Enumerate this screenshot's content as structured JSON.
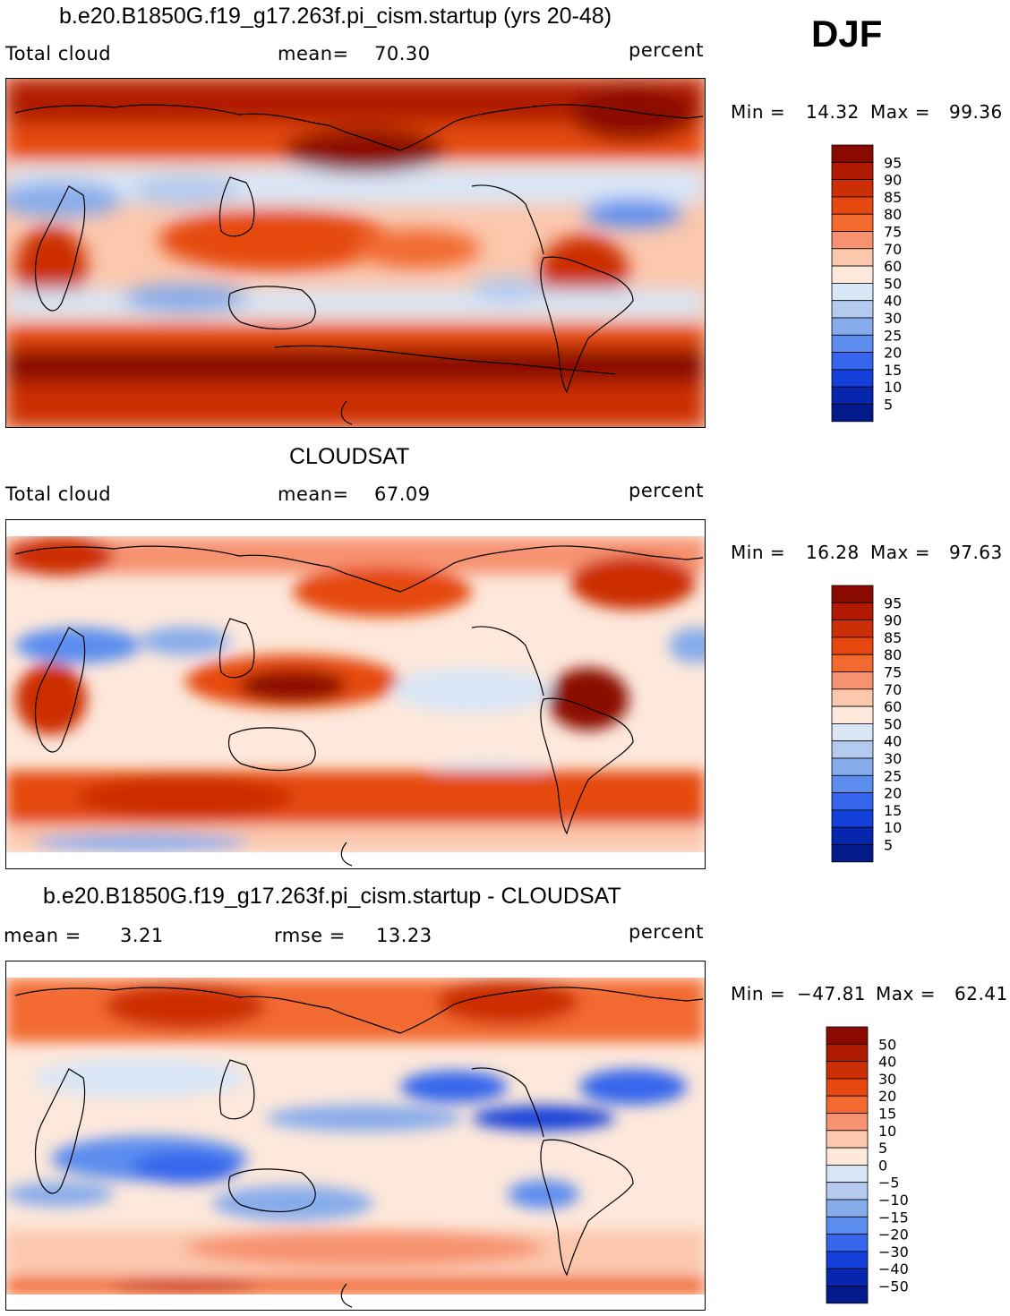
{
  "season": "DJF",
  "panels": [
    {
      "id": "model",
      "title": "b.e20.B1850G.f19_g17.263f.pi_cism.startup (yrs 20-48)",
      "left_label": "Total cloud",
      "center_label": "mean=",
      "center_value": "70.30",
      "units": "percent",
      "min_label": "Min =",
      "min_value": "14.32",
      "max_label": "Max =",
      "max_value": "99.36",
      "colorbar_labels": [
        "95",
        "90",
        "85",
        "80",
        "75",
        "70",
        "60",
        "50",
        "40",
        "30",
        "25",
        "20",
        "15",
        "10",
        "5"
      ],
      "colorbar_colors": [
        "#8b0a00",
        "#b01a00",
        "#cc2f05",
        "#e5480f",
        "#f26a30",
        "#f79270",
        "#fbc7ad",
        "#fde8db",
        "#d9e6f6",
        "#b4cbef",
        "#87aceb",
        "#5b8def",
        "#3566ec",
        "#1240d9",
        "#0626ae",
        "#051a8a"
      ]
    },
    {
      "id": "obs",
      "title": "CLOUDSAT",
      "left_label": "Total cloud",
      "center_label": "mean=",
      "center_value": "67.09",
      "units": "percent",
      "min_label": "Min =",
      "min_value": "16.28",
      "max_label": "Max =",
      "max_value": "97.63",
      "colorbar_labels": [
        "95",
        "90",
        "85",
        "80",
        "75",
        "70",
        "60",
        "50",
        "40",
        "30",
        "25",
        "20",
        "15",
        "10",
        "5"
      ],
      "colorbar_colors": [
        "#8b0a00",
        "#b01a00",
        "#cc2f05",
        "#e5480f",
        "#f26a30",
        "#f79270",
        "#fbc7ad",
        "#fde8db",
        "#d9e6f6",
        "#b4cbef",
        "#87aceb",
        "#5b8def",
        "#3566ec",
        "#1240d9",
        "#0626ae",
        "#051a8a"
      ]
    },
    {
      "id": "diff",
      "title": "b.e20.B1850G.f19_g17.263f.pi_cism.startup - CLOUDSAT",
      "left_label": "mean =",
      "left_value": "3.21",
      "center_label": "rmse =",
      "center_value": "13.23",
      "units": "percent",
      "min_label": "Min =",
      "min_value": "−47.81",
      "max_label": "Max =",
      "max_value": "62.41",
      "colorbar_labels": [
        "50",
        "40",
        "30",
        "20",
        "15",
        "10",
        "5",
        "0",
        "−5",
        "−10",
        "−15",
        "−20",
        "−30",
        "−40",
        "−50"
      ],
      "colorbar_colors": [
        "#8b0a00",
        "#b01a00",
        "#cc2f05",
        "#e5480f",
        "#f26a30",
        "#f79270",
        "#fbc7ad",
        "#fde8db",
        "#d9e6f6",
        "#b4cbef",
        "#87aceb",
        "#5b8def",
        "#3566ec",
        "#1240d9",
        "#0626ae",
        "#051a8a"
      ]
    }
  ]
}
